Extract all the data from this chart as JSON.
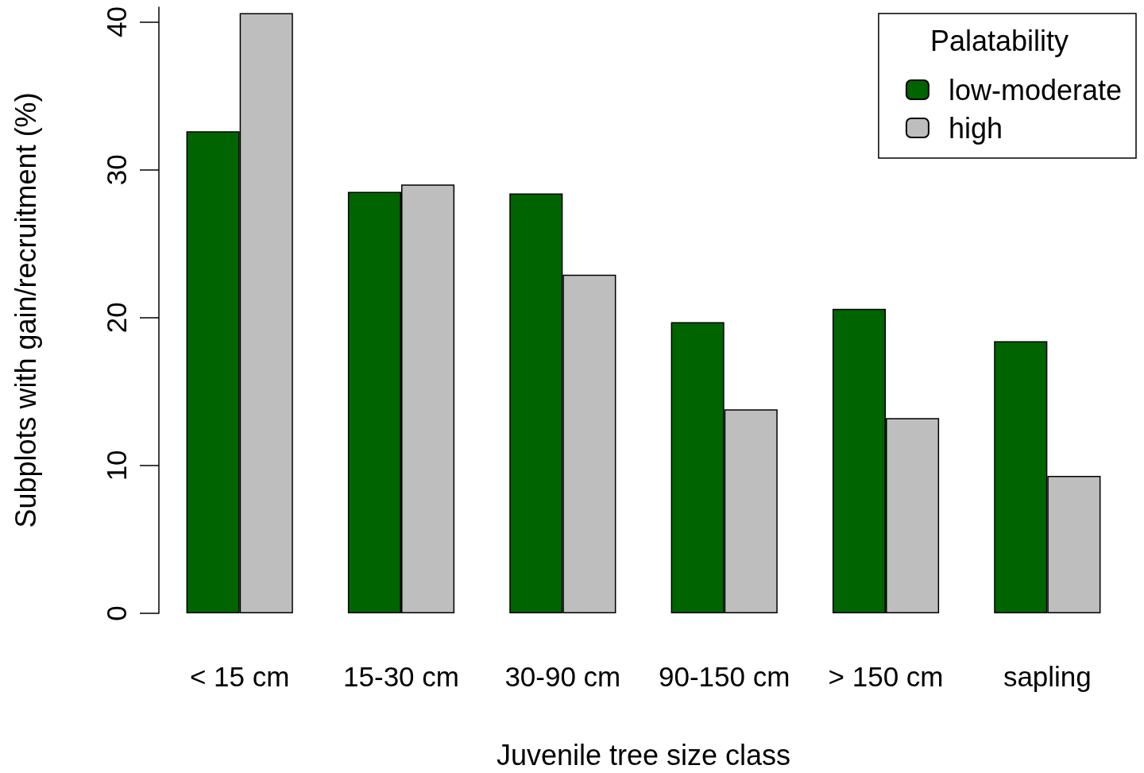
{
  "chart_data": {
    "type": "bar",
    "xlabel": "Juvenile tree size class",
    "ylabel": "Subplots with gain/recruitment (%)",
    "legend_title": "Palatability",
    "categories": [
      "< 15 cm",
      "15-30 cm",
      "30-90 cm",
      "90-150 cm",
      "> 150 cm",
      "sapling"
    ],
    "series": [
      {
        "name": "low-moderate",
        "color": "#006400",
        "values": [
          32.6,
          28.5,
          28.4,
          19.7,
          20.6,
          18.4
        ]
      },
      {
        "name": "high",
        "color": "#bebebe",
        "values": [
          40.6,
          29.0,
          22.9,
          13.8,
          13.2,
          9.3
        ]
      }
    ],
    "ylim": [
      0,
      41
    ],
    "yticks": [
      0,
      10,
      20,
      30,
      40
    ],
    "grid": false,
    "legend": "top right"
  }
}
